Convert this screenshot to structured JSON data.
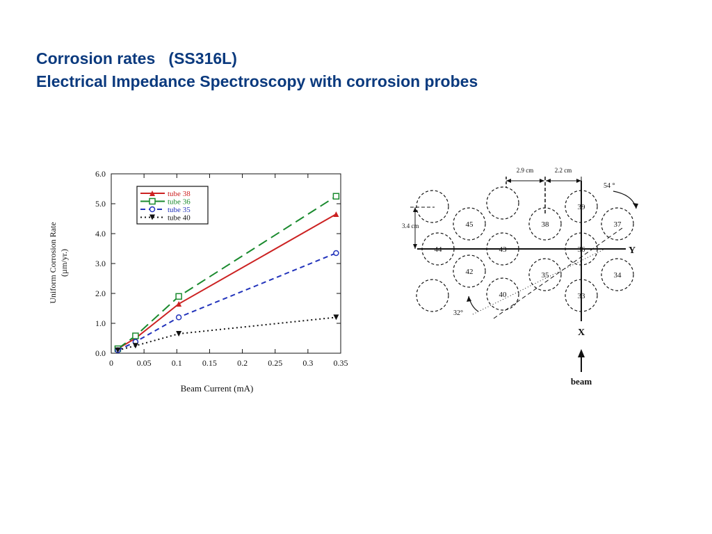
{
  "slide": {
    "title_line1": "Corrosion rates   (SS316L)",
    "title_line2": "Electrical Impedance Spectroscopy with corrosion probes"
  },
  "chart_data": {
    "type": "line",
    "title": "",
    "xlabel": "Beam Current (mA)",
    "ylabel_line1": "Uniform Corrosion Rate",
    "ylabel_line2": "(µm/yr.)",
    "xlim": [
      0,
      0.35
    ],
    "ylim": [
      0,
      6.0
    ],
    "x_ticks": [
      0,
      0.05,
      0.1,
      0.15,
      0.2,
      0.25,
      0.3,
      0.35
    ],
    "x_tick_labels": [
      "0",
      "0.05",
      "0.1",
      "0.15",
      "0.2",
      "0.25",
      "0.3",
      "0.35"
    ],
    "y_ticks": [
      0,
      1,
      2,
      3,
      4,
      5,
      6
    ],
    "y_tick_labels": [
      "0.0",
      "1.0",
      "2.0",
      "3.0",
      "4.0",
      "5.0",
      "6.0"
    ],
    "grid": false,
    "legend_position": "top-left",
    "series": [
      {
        "name": "tube 38",
        "color": "#cc2222",
        "dash": "solid",
        "marker": "triangle-up",
        "x": [
          0.01,
          0.037,
          0.103,
          0.343
        ],
        "y": [
          0.15,
          0.5,
          1.65,
          4.65
        ]
      },
      {
        "name": "tube 36",
        "color": "#1a8a2e",
        "dash": "long-dash",
        "marker": "square-open",
        "x": [
          0.01,
          0.037,
          0.103,
          0.343
        ],
        "y": [
          0.15,
          0.58,
          1.9,
          5.25
        ]
      },
      {
        "name": "tube 35",
        "color": "#2233bb",
        "dash": "dash",
        "marker": "circle-open",
        "x": [
          0.01,
          0.037,
          0.103,
          0.343
        ],
        "y": [
          0.1,
          0.38,
          1.2,
          3.35
        ]
      },
      {
        "name": "tube 40",
        "color": "#111111",
        "dash": "dot",
        "marker": "triangle-down",
        "x": [
          0.01,
          0.037,
          0.103,
          0.343
        ],
        "y": [
          0.1,
          0.25,
          0.65,
          1.2
        ]
      }
    ]
  },
  "diagram": {
    "tubes": [
      {
        "label": "39"
      },
      {
        "label": "38"
      },
      {
        "label": "37"
      },
      {
        "label": "36"
      },
      {
        "label": "35"
      },
      {
        "label": "34"
      },
      {
        "label": "33"
      },
      {
        "label": "40"
      },
      {
        "label": "42"
      },
      {
        "label": "43"
      },
      {
        "label": "44"
      },
      {
        "label": "45"
      }
    ],
    "dim_29": "2.9 cm",
    "dim_22": "2.2 cm",
    "dim_34": "3.4 cm",
    "angle_54": "54 °",
    "angle_32": "32°",
    "axis_y": "Y",
    "axis_x": "X",
    "beam": "beam"
  }
}
